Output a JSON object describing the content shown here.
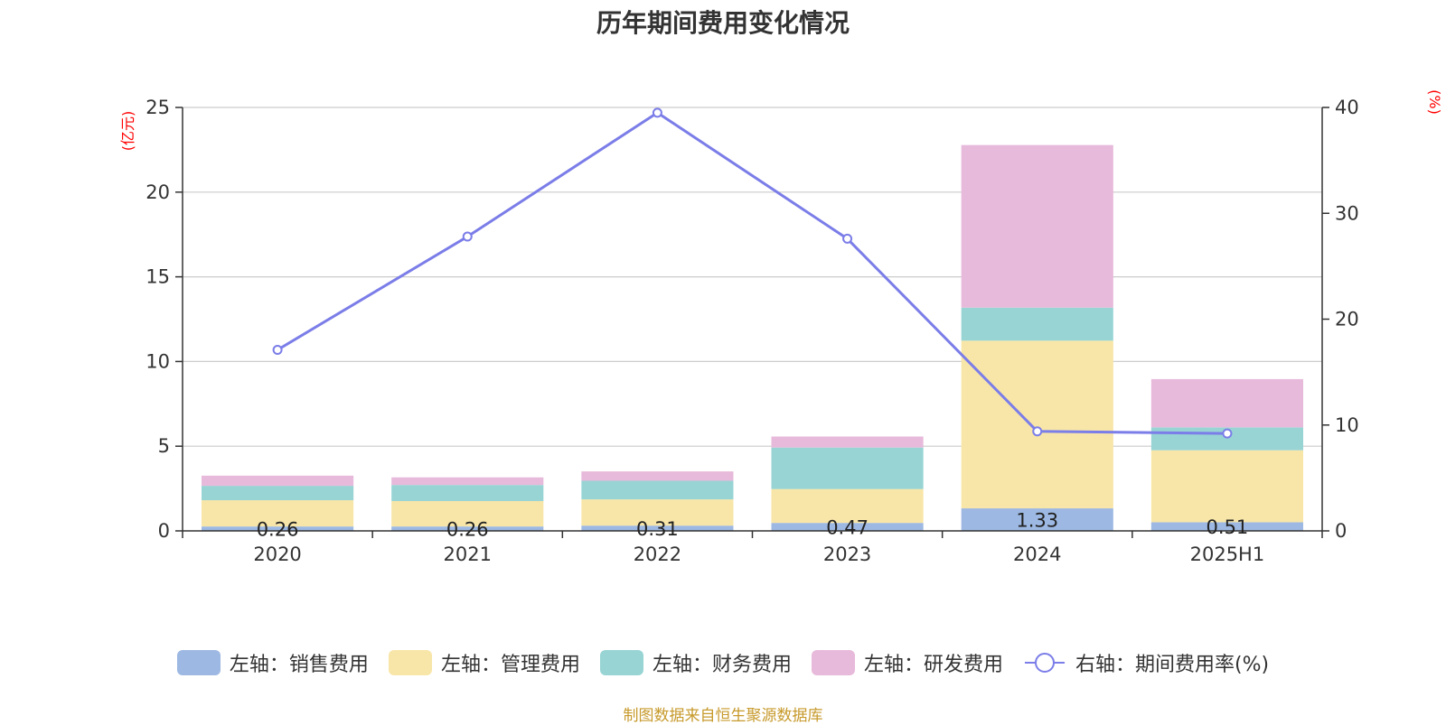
{
  "chart_data": {
    "type": "bar",
    "title": "历年期间费用变化情况",
    "categories": [
      "2020",
      "2021",
      "2022",
      "2023",
      "2024",
      "2025H1"
    ],
    "left_axis": {
      "unit": "(亿元)",
      "ylim": [
        0,
        25
      ],
      "ticks": [
        0,
        5,
        10,
        15,
        20,
        25
      ]
    },
    "right_axis": {
      "unit": "(%)",
      "ylim": [
        0,
        40
      ],
      "ticks": [
        0,
        10,
        20,
        30,
        40
      ]
    },
    "series": [
      {
        "name": "左轴：销售费用",
        "axis": "left",
        "type": "bar",
        "color": "#9db8e2",
        "values": [
          0.26,
          0.26,
          0.31,
          0.47,
          1.33,
          0.51
        ],
        "labels": [
          "0.26",
          "0.26",
          "0.31",
          "0.47",
          "1.33",
          "0.51"
        ]
      },
      {
        "name": "左轴：管理费用",
        "axis": "left",
        "type": "bar",
        "color": "#f8e6a8",
        "values": [
          1.55,
          1.5,
          1.55,
          2.0,
          9.9,
          4.25
        ]
      },
      {
        "name": "左轴：财务费用",
        "axis": "left",
        "type": "bar",
        "color": "#98d4d4",
        "values": [
          0.85,
          0.95,
          1.1,
          2.45,
          1.95,
          1.35
        ]
      },
      {
        "name": "左轴：研发费用",
        "axis": "left",
        "type": "bar",
        "color": "#e7b9da",
        "values": [
          0.6,
          0.45,
          0.55,
          0.65,
          9.6,
          2.85
        ]
      },
      {
        "name": "右轴：期间费用率(%)",
        "axis": "right",
        "type": "line",
        "color": "#7b7de8",
        "values": [
          17.1,
          27.8,
          39.5,
          27.6,
          9.4,
          9.2
        ]
      }
    ],
    "grid": true,
    "legend_position": "bottom"
  },
  "source_text": "制图数据来自恒生聚源数据库"
}
